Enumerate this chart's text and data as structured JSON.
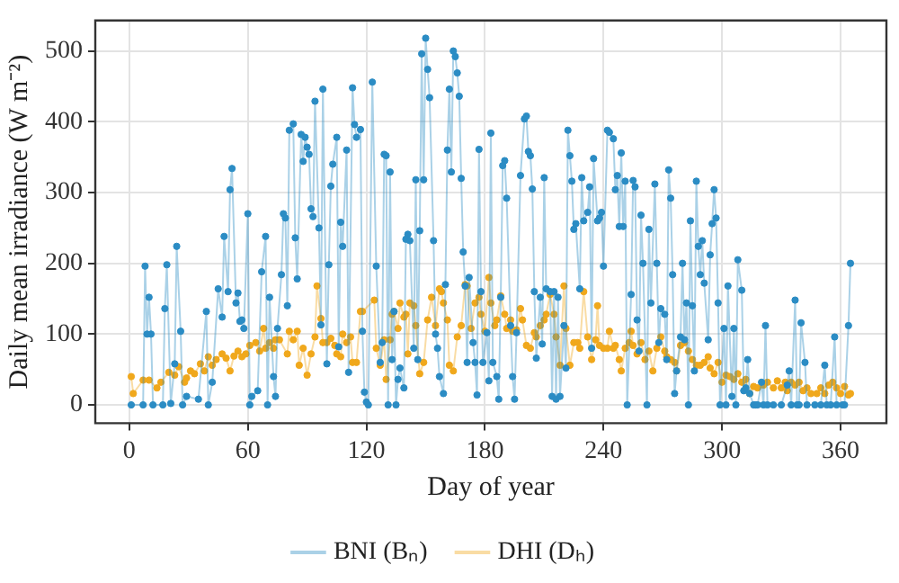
{
  "chart_data": {
    "type": "line",
    "xlabel": "Day of year",
    "ylabel": "Daily mean irradiance (W m⁻²)",
    "xlim": [
      -17.2,
      383.2
    ],
    "xticks": [
      0,
      60,
      120,
      180,
      240,
      300,
      360
    ],
    "ylim": [
      -25.9,
      543
    ],
    "yticks": [
      0,
      100,
      200,
      300,
      400,
      500
    ],
    "grid": true,
    "legend": "bottom",
    "marker": "circle",
    "line_style": "solid",
    "series": [
      {
        "name": "BNI (Bₙ)",
        "color": "#2b8cc4",
        "x": [
          1,
          7,
          8,
          9,
          10,
          11,
          12,
          17,
          18,
          19,
          21,
          23,
          24,
          26,
          27,
          29,
          35,
          39,
          40,
          42,
          45,
          47,
          48,
          50,
          51,
          52,
          54,
          55,
          56,
          57,
          58,
          60,
          61,
          62,
          65,
          67,
          69,
          70,
          71,
          73,
          74,
          75,
          77,
          78,
          79,
          80,
          81,
          83,
          84,
          85,
          87,
          88,
          89,
          90,
          91,
          92,
          93,
          94,
          96,
          97,
          98,
          100,
          101,
          102,
          103,
          105,
          106,
          107,
          108,
          110,
          111,
          113,
          114,
          115,
          117,
          118,
          119,
          120,
          121,
          123,
          125,
          127,
          128,
          129,
          130,
          131,
          132,
          133,
          134,
          135,
          136,
          137,
          139,
          140,
          141,
          142,
          144,
          145,
          146,
          147,
          148,
          149,
          150,
          151,
          152,
          154,
          155,
          156,
          157,
          159,
          160,
          161,
          162,
          163,
          164,
          165,
          166,
          167,
          168,
          169,
          170,
          171,
          172,
          174,
          175,
          176,
          177,
          178,
          179,
          181,
          182,
          183,
          184,
          186,
          187,
          188,
          189,
          190,
          191,
          193,
          194,
          195,
          196,
          198,
          200,
          201,
          202,
          203,
          204,
          205,
          206,
          208,
          209,
          210,
          211,
          213,
          214,
          215,
          216,
          217,
          218,
          220,
          221,
          222,
          223,
          224,
          225,
          226,
          228,
          229,
          230,
          232,
          233,
          234,
          235,
          237,
          238,
          239,
          240,
          242,
          243,
          245,
          246,
          247,
          248,
          249,
          250,
          251,
          252,
          254,
          255,
          256,
          257,
          258,
          259,
          260,
          262,
          263,
          264,
          266,
          267,
          268,
          269,
          271,
          272,
          273,
          274,
          275,
          276,
          277,
          279,
          280,
          281,
          282,
          283,
          284,
          285,
          286,
          287,
          288,
          289,
          290,
          291,
          293,
          294,
          295,
          296,
          297,
          298,
          299,
          301,
          302,
          303,
          305,
          306,
          307,
          308,
          310,
          311,
          312,
          313,
          314,
          316,
          317,
          318,
          320,
          321,
          322,
          323,
          326,
          330,
          333,
          334,
          335,
          337,
          338,
          339,
          340,
          342,
          343,
          347,
          350,
          352,
          353,
          355,
          357,
          358,
          361,
          362,
          364,
          365
        ],
        "values": [
          0,
          0,
          196,
          100,
          152,
          100,
          0,
          0,
          136,
          198,
          2,
          58,
          224,
          104,
          0,
          12,
          8,
          132,
          0,
          32,
          164,
          124,
          238,
          160,
          304,
          334,
          144,
          158,
          118,
          120,
          108,
          270,
          0,
          12,
          20,
          188,
          238,
          0,
          152,
          40,
          12,
          108,
          184,
          270,
          264,
          140,
          388,
          397,
          236,
          178,
          382,
          344,
          378,
          364,
          354,
          277,
          266,
          429,
          250,
          113,
          446,
          58,
          198,
          309,
          340,
          378,
          82,
          258,
          224,
          360,
          46,
          448,
          396,
          378,
          389,
          104,
          18,
          4,
          0,
          456,
          196,
          60,
          88,
          354,
          352,
          0,
          329,
          64,
          132,
          0,
          36,
          52,
          24,
          234,
          241,
          232,
          80,
          318,
          64,
          246,
          496,
          318,
          518,
          474,
          434,
          232,
          100,
          80,
          40,
          16,
          170,
          360,
          446,
          329,
          500,
          492,
          469,
          436,
          320,
          216,
          168,
          60,
          180,
          88,
          60,
          14,
          361,
          160,
          60,
          102,
          34,
          384,
          60,
          40,
          8,
          152,
          338,
          345,
          292,
          112,
          40,
          8,
          102,
          324,
          404,
          408,
          358,
          352,
          305,
          160,
          66,
          152,
          86,
          321,
          164,
          160,
          12,
          160,
          8,
          152,
          12,
          112,
          52,
          388,
          352,
          316,
          248,
          256,
          164,
          321,
          260,
          272,
          308,
          80,
          348,
          260,
          264,
          272,
          196,
          388,
          385,
          376,
          304,
          324,
          252,
          356,
          252,
          316,
          0,
          156,
          317,
          308,
          120,
          76,
          268,
          200,
          0,
          248,
          144,
          312,
          200,
          88,
          136,
          128,
          64,
          332,
          292,
          184,
          16,
          48,
          96,
          200,
          92,
          144,
          0,
          260,
          140,
          48,
          316,
          224,
          184,
          232,
          172,
          92,
          212,
          256,
          304,
          264,
          144,
          0,
          108,
          0,
          168,
          12,
          108,
          0,
          205,
          162,
          20,
          24,
          64,
          16,
          0,
          0,
          0,
          32,
          0,
          112,
          0,
          0,
          0,
          28,
          48,
          0,
          148,
          0,
          0,
          116,
          60,
          0,
          0,
          0,
          56,
          0,
          0,
          96,
          0,
          0,
          0,
          112,
          200
        ]
      },
      {
        "name": "DHI (Dₕ)",
        "color": "#f0a81c",
        "x": [
          1,
          2,
          7,
          10,
          14,
          16,
          20,
          23,
          25,
          28,
          29,
          31,
          33,
          36,
          38,
          40,
          42,
          44,
          47,
          49,
          51,
          53,
          55,
          57,
          59,
          61,
          64,
          66,
          68,
          69,
          71,
          73,
          74,
          76,
          80,
          81,
          83,
          85,
          86,
          88,
          90,
          92,
          94,
          95,
          97,
          98,
          100,
          102,
          104,
          105,
          107,
          108,
          110,
          112,
          113,
          115,
          117,
          118,
          124,
          125,
          127,
          129,
          130,
          132,
          133,
          134,
          136,
          137,
          139,
          140,
          141,
          142,
          144,
          145,
          147,
          149,
          151,
          153,
          155,
          157,
          158,
          159,
          161,
          162,
          164,
          166,
          168,
          170,
          171,
          173,
          175,
          177,
          178,
          180,
          182,
          183,
          185,
          186,
          188,
          190,
          191,
          193,
          194,
          196,
          198,
          199,
          201,
          203,
          205,
          206,
          208,
          210,
          211,
          213,
          215,
          216,
          218,
          220,
          221,
          223,
          225,
          227,
          228,
          230,
          232,
          234,
          236,
          237,
          238,
          240,
          242,
          243,
          245,
          246,
          248,
          249,
          251,
          253,
          254,
          255,
          257,
          259,
          261,
          263,
          265,
          267,
          269,
          271,
          272,
          274,
          276,
          277,
          279,
          281,
          283,
          285,
          287,
          289,
          291,
          293,
          294,
          296,
          298,
          300,
          302,
          304,
          306,
          308,
          310,
          312,
          314,
          316,
          318,
          321,
          323,
          326,
          328,
          330,
          332,
          333,
          335,
          337,
          339,
          341,
          343,
          345,
          348,
          350,
          352,
          354,
          356,
          358,
          360,
          362,
          364,
          365
        ],
        "values": [
          40,
          16,
          35,
          35,
          24,
          32,
          46,
          42,
          54,
          32,
          38,
          48,
          44,
          58,
          48,
          68,
          56,
          64,
          72,
          66,
          48,
          69,
          76,
          68,
          72,
          84,
          88,
          76,
          108,
          80,
          88,
          80,
          92,
          92,
          72,
          104,
          92,
          104,
          56,
          80,
          42,
          72,
          96,
          168,
          122,
          88,
          88,
          94,
          84,
          72,
          68,
          100,
          88,
          96,
          60,
          60,
          132,
          132,
          148,
          80,
          56,
          92,
          36,
          92,
          128,
          132,
          108,
          144,
          124,
          128,
          72,
          144,
          140,
          112,
          44,
          60,
          120,
          152,
          112,
          164,
          160,
          144,
          120,
          56,
          48,
          96,
          112,
          170,
          168,
          108,
          144,
          152,
          128,
          104,
          180,
          144,
          112,
          120,
          154,
          128,
          108,
          120,
          104,
          106,
          136,
          120,
          84,
          80,
          102,
          96,
          112,
          120,
          128,
          156,
          128,
          96,
          56,
          168,
          108,
          56,
          88,
          88,
          80,
          160,
          96,
          64,
          92,
          140,
          84,
          80,
          80,
          104,
          80,
          84,
          64,
          48,
          80,
          88,
          104,
          84,
          72,
          88,
          64,
          76,
          48,
          80,
          96,
          76,
          68,
          64,
          60,
          48,
          84,
          88,
          76,
          64,
          56,
          56,
          60,
          68,
          52,
          44,
          60,
          32,
          42,
          40,
          36,
          44,
          32,
          36,
          16,
          26,
          24,
          28,
          32,
          24,
          34,
          24,
          32,
          20,
          32,
          28,
          32,
          20,
          24,
          16,
          16,
          24,
          16,
          28,
          32,
          24,
          16,
          26,
          14,
          16
        ]
      }
    ]
  }
}
